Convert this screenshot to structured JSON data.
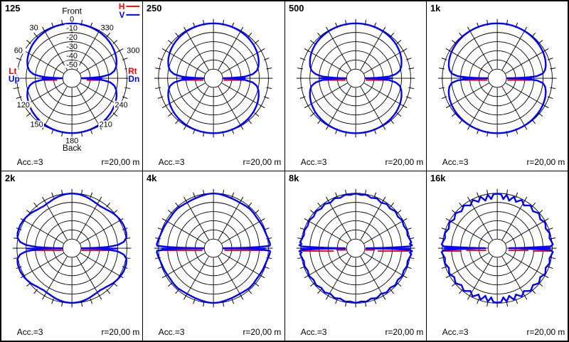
{
  "colors": {
    "h_curve": "#ff0000",
    "v_curve": "#0000ff",
    "grid": "#000000",
    "text": "#000000",
    "background": "#ffffff"
  },
  "legend": {
    "h_label": "H",
    "v_label": "V"
  },
  "labels": {
    "front": "Front",
    "back": "Back",
    "lt": "Lt",
    "rt": "Rt",
    "up": "Up",
    "dn": "Dn",
    "a30": "30",
    "a60": "60",
    "a120": "120",
    "a150": "150",
    "a180": "180",
    "a210": "210",
    "a240": "240",
    "a300": "300",
    "a330": "330",
    "db": [
      "0",
      "-10",
      "-20",
      "-30",
      "-40",
      "-50"
    ]
  },
  "footer": {
    "acc": "Acc.=3",
    "r": "r=20,00 m"
  },
  "chart_data": {
    "type": "polar-directivity",
    "legend": {
      "H": "red horizontal-plane curve",
      "V": "blue vertical-plane curve"
    },
    "angle_convention": "0 deg = Front (top), 180 deg = Back (bottom); H axis: Lt(left)/Rt(right); V axis: Up(left)/Dn(right)",
    "db_rings": [
      0,
      -10,
      -20,
      -30,
      -40,
      -50
    ],
    "ring_step_db": 10,
    "radial_line_step_deg": 30,
    "tick_step_deg": 10,
    "symmetry": "quadrant-mirrored estimates; v_db = [angle_deg_from_front, dB] keypoints for 0..90",
    "accuracy": "Acc.=3",
    "distance": "r=20,00 m",
    "panels": [
      {
        "freq": "125",
        "v_db": [
          [
            0,
            -0.2
          ],
          [
            10,
            -0.3
          ],
          [
            20,
            -0.7
          ],
          [
            30,
            -1.3
          ],
          [
            40,
            -2.2
          ],
          [
            50,
            -3.6
          ],
          [
            60,
            -5.5
          ],
          [
            68,
            -7.5
          ],
          [
            75,
            -10
          ],
          [
            80,
            -13
          ],
          [
            84,
            -18
          ],
          [
            87,
            -28
          ],
          [
            88.5,
            -40
          ],
          [
            90,
            -50
          ]
        ],
        "h_segments_db": [
          [
            -28,
            -44,
            2.5
          ]
        ],
        "v_axis_segments_db": [
          [
            -27,
            -49,
            0
          ]
        ]
      },
      {
        "freq": "250",
        "v_db": [
          [
            0,
            -0.1
          ],
          [
            10,
            -0.2
          ],
          [
            20,
            -0.5
          ],
          [
            30,
            -1.0
          ],
          [
            40,
            -1.8
          ],
          [
            50,
            -3.0
          ],
          [
            60,
            -4.8
          ],
          [
            68,
            -6.8
          ],
          [
            75,
            -9.2
          ],
          [
            80,
            -12
          ],
          [
            84,
            -17
          ],
          [
            87,
            -26
          ],
          [
            88.5,
            -38
          ],
          [
            90,
            -50
          ]
        ],
        "h_segments_db": [
          [
            -27,
            -49,
            2.5
          ]
        ],
        "v_axis_segments_db": [
          [
            -25,
            -49,
            0
          ]
        ]
      },
      {
        "freq": "500",
        "v_db": [
          [
            0,
            -0.1
          ],
          [
            10,
            -0.15
          ],
          [
            20,
            -0.4
          ],
          [
            30,
            -0.8
          ],
          [
            40,
            -1.5
          ],
          [
            50,
            -2.5
          ],
          [
            60,
            -4.2
          ],
          [
            68,
            -6.2
          ],
          [
            75,
            -8.5
          ],
          [
            80,
            -11
          ],
          [
            84,
            -16
          ],
          [
            87,
            -24
          ],
          [
            88.5,
            -36
          ],
          [
            90,
            -50
          ]
        ],
        "h_segments_db": [
          [
            -26,
            -49,
            2.5
          ]
        ],
        "v_axis_segments_db": [
          [
            -20,
            -49,
            0
          ]
        ]
      },
      {
        "freq": "1k",
        "v_db": [
          [
            0,
            -0.1
          ],
          [
            10,
            -0.1
          ],
          [
            20,
            -0.3
          ],
          [
            30,
            -0.5
          ],
          [
            40,
            -0.9
          ],
          [
            50,
            -1.5
          ],
          [
            60,
            -2.4
          ],
          [
            68,
            -3.6
          ],
          [
            75,
            -5.2
          ],
          [
            80,
            -7
          ],
          [
            84,
            -10
          ],
          [
            87,
            -17
          ],
          [
            88.5,
            -30
          ],
          [
            90,
            -50
          ]
        ],
        "h_segments_db": [
          [
            -24,
            -49,
            2.5
          ]
        ],
        "v_axis_segments_db": [
          [
            -22,
            -49,
            0
          ]
        ]
      },
      {
        "freq": "2k",
        "v_db": [
          [
            0,
            -0.3
          ],
          [
            8,
            -0.8
          ],
          [
            16,
            -2
          ],
          [
            26,
            -4
          ],
          [
            34,
            -4.8
          ],
          [
            42,
            -3.5
          ],
          [
            50,
            -1
          ],
          [
            58,
            0.8
          ],
          [
            66,
            1.8
          ],
          [
            74,
            1.6
          ],
          [
            79,
            0.5
          ],
          [
            83,
            -3
          ],
          [
            86,
            -10
          ],
          [
            88,
            -22
          ],
          [
            89,
            -35
          ],
          [
            90,
            -50
          ]
        ],
        "h_segments_db": [
          [
            -15,
            -51,
            3
          ]
        ],
        "v_axis_segments_db": [
          [
            -10,
            -50,
            0.5
          ]
        ]
      },
      {
        "freq": "4k",
        "v_db": [
          [
            0,
            -0.3
          ],
          [
            6,
            -0.6
          ],
          [
            12,
            -1.4
          ],
          [
            18,
            -2
          ],
          [
            24,
            -2.4
          ],
          [
            30,
            -2.6
          ],
          [
            36,
            -2.2
          ],
          [
            42,
            -1.6
          ],
          [
            48,
            -1.8
          ],
          [
            54,
            -2.2
          ],
          [
            60,
            -2
          ],
          [
            66,
            -1.4
          ],
          [
            72,
            -1
          ],
          [
            77,
            -0.2
          ],
          [
            82,
            1
          ],
          [
            86,
            2
          ],
          [
            87.5,
            1.5
          ],
          [
            88.5,
            -12
          ],
          [
            89.2,
            -28
          ],
          [
            90,
            -50
          ]
        ],
        "h_segments_db": [
          [
            -6,
            -48,
            3
          ]
        ],
        "v_axis_segments_db": [
          [
            -3,
            -49,
            0.5
          ]
        ]
      },
      {
        "freq": "8k",
        "v_db": [
          [
            0,
            -0.4
          ],
          [
            6,
            -1.6
          ],
          [
            11,
            -0.6
          ],
          [
            17,
            -2.6
          ],
          [
            23,
            -1
          ],
          [
            29,
            -3.2
          ],
          [
            35,
            -1.2
          ],
          [
            41,
            -2.8
          ],
          [
            47,
            -1
          ],
          [
            53,
            -2.6
          ],
          [
            59,
            -1
          ],
          [
            65,
            -2.2
          ],
          [
            71,
            -0.8
          ],
          [
            76,
            -1.8
          ],
          [
            80,
            -0.4
          ],
          [
            84,
            1
          ],
          [
            85.5,
            -0.8
          ],
          [
            87,
            1.6
          ],
          [
            88,
            -1
          ],
          [
            88.8,
            -18
          ],
          [
            89.4,
            -32
          ],
          [
            90,
            -48
          ]
        ],
        "h_segments_db": [
          [
            -1.5,
            -36,
            4
          ],
          [
            -39,
            -50,
            2.5
          ]
        ],
        "v_axis_segments_db": [
          [
            -0.5,
            -49,
            0.5
          ]
        ]
      },
      {
        "freq": "16k",
        "v_db": [
          [
            0,
            -0.6
          ],
          [
            4,
            -1
          ],
          [
            7,
            -6
          ],
          [
            10,
            -1
          ],
          [
            14,
            -6.5
          ],
          [
            18,
            -1
          ],
          [
            22,
            -5.5
          ],
          [
            27,
            -1
          ],
          [
            32,
            -5
          ],
          [
            38,
            -1
          ],
          [
            44,
            -4
          ],
          [
            50,
            -0.8
          ],
          [
            56,
            -3.5
          ],
          [
            62,
            -0.8
          ],
          [
            68,
            -3
          ],
          [
            74,
            -0.6
          ],
          [
            79,
            -2
          ],
          [
            83,
            -0.4
          ],
          [
            86,
            0.8
          ],
          [
            88,
            -1.5
          ],
          [
            89,
            -30
          ],
          [
            90,
            -47
          ]
        ],
        "h_segments_db": [
          [
            -1,
            -21,
            4
          ],
          [
            -26,
            -48,
            3
          ]
        ],
        "v_axis_segments_db": [
          [
            -2,
            -20,
            0
          ],
          [
            -24,
            -47,
            0
          ]
        ]
      }
    ]
  }
}
